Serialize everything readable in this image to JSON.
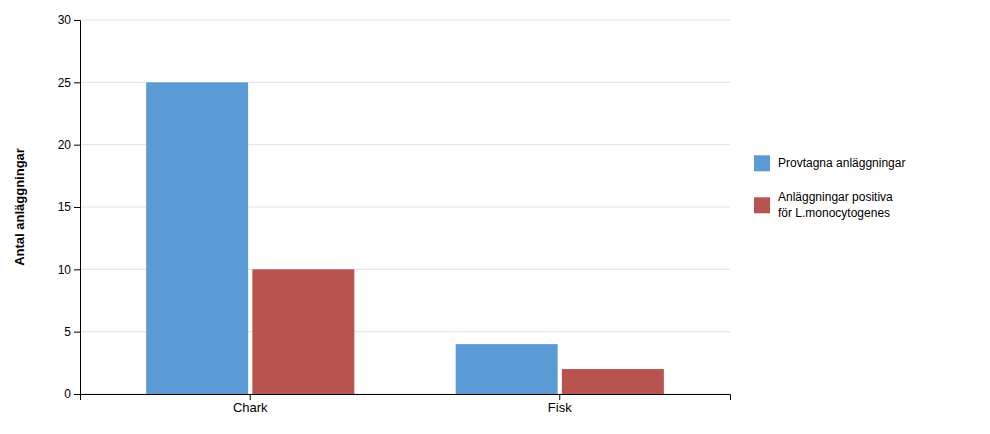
{
  "chart_data": {
    "type": "bar",
    "categories": [
      "Chark",
      "Fisk"
    ],
    "series": [
      {
        "name": "Provtagna anläggningar",
        "color": "#5B9BD5",
        "values": [
          25,
          4
        ]
      },
      {
        "name": "Anläggningar positiva\nför L.monocytogenes",
        "color": "#B85450",
        "values": [
          10,
          2
        ]
      }
    ],
    "ylabel": "Antal anläggningar",
    "ylim": [
      0,
      30
    ],
    "yticks": [
      0,
      5,
      10,
      15,
      20,
      25,
      30
    ],
    "grid": true,
    "legend": "right"
  }
}
